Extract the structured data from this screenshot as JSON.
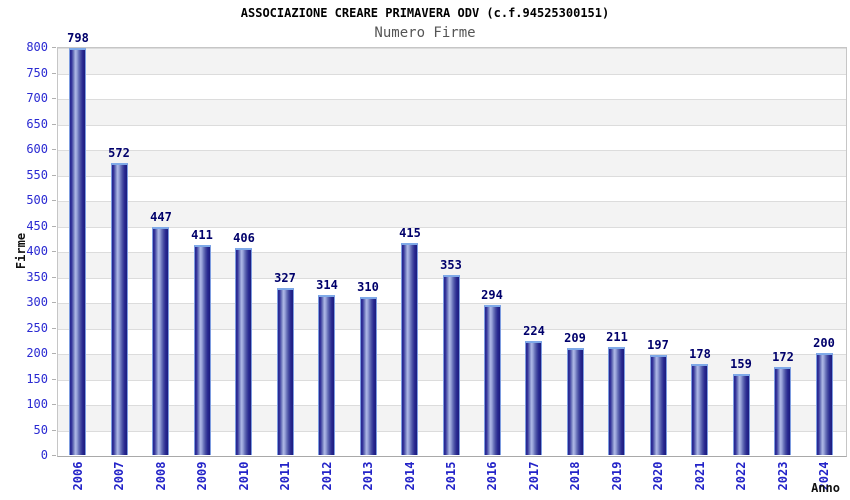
{
  "header": {
    "title": "ASSOCIAZIONE CREARE PRIMAVERA ODV (c.f.94525300151)",
    "subtitle": "Numero Firme"
  },
  "chart_data": {
    "type": "bar",
    "title": "Numero Firme",
    "xlabel": "Anno",
    "ylabel": "Firme",
    "categories": [
      "2006",
      "2007",
      "2008",
      "2009",
      "2010",
      "2011",
      "2012",
      "2013",
      "2014",
      "2015",
      "2016",
      "2017",
      "2018",
      "2019",
      "2020",
      "2021",
      "2022",
      "2023",
      "2024"
    ],
    "values": [
      798,
      572,
      447,
      411,
      406,
      327,
      314,
      310,
      415,
      353,
      294,
      224,
      209,
      211,
      197,
      178,
      159,
      172,
      200
    ],
    "ylim": [
      0,
      800
    ],
    "yticks": [
      0,
      50,
      100,
      150,
      200,
      250,
      300,
      350,
      400,
      450,
      500,
      550,
      600,
      650,
      700,
      750,
      800
    ],
    "grid": true,
    "legend_position": "none",
    "colors": {
      "bar_dark": "#26268f",
      "bar_highlight": "#aeb8e6",
      "bar_border": "#7d9ce0",
      "y_tick_label": "#2a2ad2",
      "x_tick_label": "#2323c8",
      "value_label": "#00006b",
      "band_gray": "#f3f3f3",
      "band_white": "#ffffff",
      "gridline": "#dcdcdc",
      "subtitle_text": "#555555",
      "title_text": "#000000"
    }
  }
}
